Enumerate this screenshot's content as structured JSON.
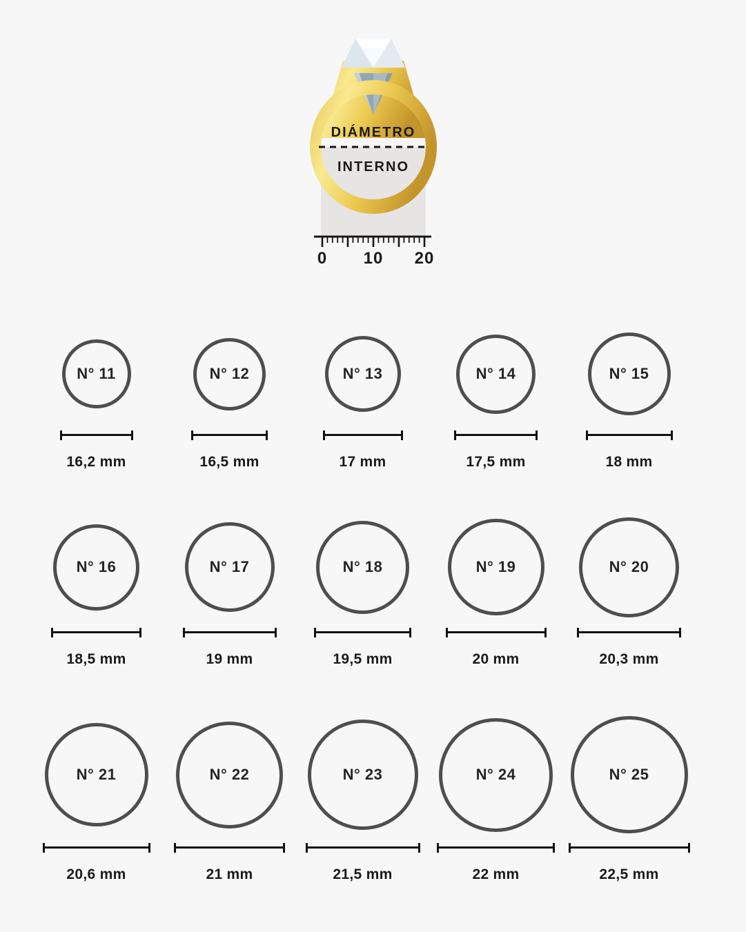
{
  "page": {
    "background": "#f7f7f7",
    "circle_stroke": "#4e4e4e",
    "text_color": "#1a1a1a",
    "gold_color": "#e9c14d",
    "measure_area_color": "#e6e5e3"
  },
  "figure": {
    "label_top": "DIÁMETRO",
    "label_bottom": "INTERNO",
    "ruler": {
      "labels": [
        "0",
        "10",
        "20"
      ],
      "minor_ticks": 21,
      "major_every": 5
    }
  },
  "sizes": [
    {
      "label": "N° 11",
      "diameter": "16,2 mm"
    },
    {
      "label": "N° 12",
      "diameter": "16,5 mm"
    },
    {
      "label": "N° 13",
      "diameter": "17 mm"
    },
    {
      "label": "N° 14",
      "diameter": "17,5 mm"
    },
    {
      "label": "N° 15",
      "diameter": "18 mm"
    },
    {
      "label": "N° 16",
      "diameter": "18,5 mm"
    },
    {
      "label": "N° 17",
      "diameter": "19 mm"
    },
    {
      "label": "N° 18",
      "diameter": "19,5 mm"
    },
    {
      "label": "N° 19",
      "diameter": "20 mm"
    },
    {
      "label": "N° 20",
      "diameter": "20,3 mm"
    },
    {
      "label": "N° 21",
      "diameter": "20,6 mm"
    },
    {
      "label": "N° 22",
      "diameter": "21 mm"
    },
    {
      "label": "N° 23",
      "diameter": "21,5 mm"
    },
    {
      "label": "N° 24",
      "diameter": "22 mm"
    },
    {
      "label": "N° 25",
      "diameter": "22,5 mm"
    }
  ]
}
